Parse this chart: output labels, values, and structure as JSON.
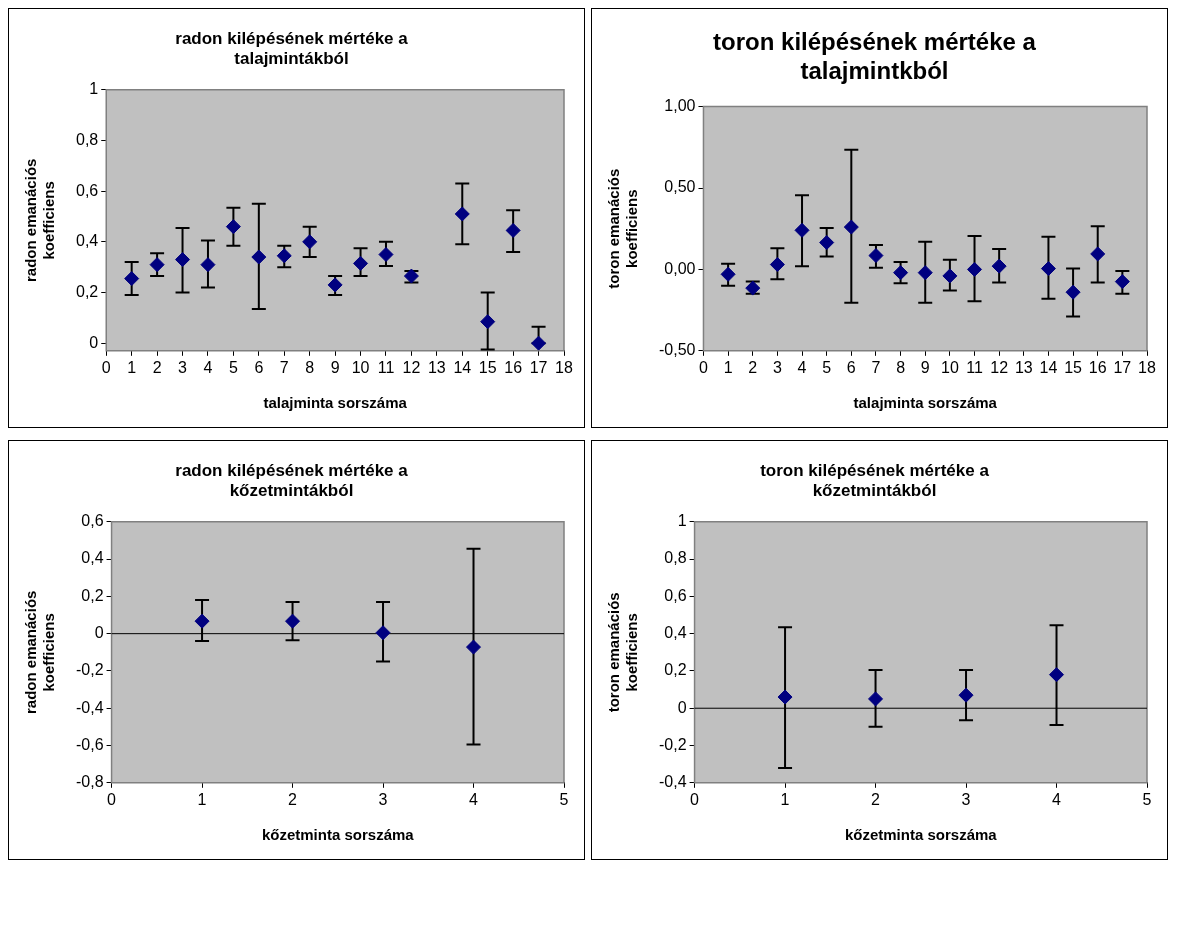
{
  "chart_data": [
    {
      "type": "scatter",
      "title": "radon kilépésének mértéke a talajmintákból",
      "xlabel": "talajminta sorszáma",
      "ylabel": "radon emanációs koefficiens",
      "color": "#000080",
      "marker": "diamond",
      "grid": false,
      "x": [
        1,
        2,
        3,
        4,
        5,
        6,
        7,
        8,
        9,
        10,
        11,
        12,
        14,
        15,
        16,
        17
      ],
      "values": [
        0.255,
        0.31,
        0.33,
        0.31,
        0.46,
        0.34,
        0.345,
        0.4,
        0.23,
        0.315,
        0.35,
        0.265,
        0.51,
        0.085,
        0.445,
        0
      ],
      "errors": [
        [
          0.19,
          0.32
        ],
        [
          0.265,
          0.355
        ],
        [
          0.2,
          0.455
        ],
        [
          0.22,
          0.405
        ],
        [
          0.385,
          0.535
        ],
        [
          0.135,
          0.55
        ],
        [
          0.3,
          0.385
        ],
        [
          0.34,
          0.46
        ],
        [
          0.19,
          0.265
        ],
        [
          0.265,
          0.375
        ],
        [
          0.305,
          0.4
        ],
        [
          0.24,
          0.285
        ],
        [
          0.39,
          0.63
        ],
        [
          -0.025,
          0.2
        ],
        [
          0.36,
          0.525
        ],
        [
          0,
          0.065
        ]
      ],
      "xlim": [
        0,
        18
      ],
      "xticks": [
        0,
        1,
        2,
        3,
        4,
        5,
        6,
        7,
        8,
        9,
        10,
        11,
        12,
        13,
        14,
        15,
        16,
        17,
        18
      ],
      "ylim": [
        -0.03,
        1
      ],
      "yticks": [
        {
          "value": 0,
          "label": "0"
        },
        {
          "value": 0.2,
          "label": "0,2"
        },
        {
          "value": 0.4,
          "label": "0,4"
        },
        {
          "value": 0.6,
          "label": "0,6"
        },
        {
          "value": 0.8,
          "label": "0,8"
        },
        {
          "value": 1,
          "label": "1"
        }
      ]
    },
    {
      "type": "scatter",
      "title": "toron kilépésének mértéke a talajmintkból",
      "xlabel": "talajminta sorszáma",
      "ylabel": "toron emanációs koefficiens",
      "color": "#000080",
      "marker": "diamond",
      "grid": false,
      "x": [
        1,
        2,
        3,
        4,
        5,
        6,
        7,
        8,
        9,
        10,
        11,
        12,
        14,
        15,
        16,
        17
      ],
      "values": [
        -0.03,
        -0.115,
        0.03,
        0.24,
        0.165,
        0.26,
        0.085,
        -0.02,
        -0.02,
        -0.04,
        0,
        0.02,
        0.005,
        -0.14,
        0.095,
        -0.075
      ],
      "errors": [
        [
          -0.1,
          0.035
        ],
        [
          -0.15,
          -0.075
        ],
        [
          -0.06,
          0.13
        ],
        [
          0.02,
          0.455
        ],
        [
          0.08,
          0.255
        ],
        [
          -0.205,
          0.735
        ],
        [
          0.01,
          0.15
        ],
        [
          -0.085,
          0.045
        ],
        [
          -0.205,
          0.17
        ],
        [
          -0.13,
          0.06
        ],
        [
          -0.195,
          0.205
        ],
        [
          -0.08,
          0.125
        ],
        [
          -0.18,
          0.2
        ],
        [
          -0.29,
          0.005
        ],
        [
          -0.08,
          0.265
        ],
        [
          -0.15,
          -0.01
        ]
      ],
      "xlim": [
        0,
        18
      ],
      "xticks": [
        0,
        1,
        2,
        3,
        4,
        5,
        6,
        7,
        8,
        9,
        10,
        11,
        12,
        13,
        14,
        15,
        16,
        17,
        18
      ],
      "ylim": [
        -0.5,
        1
      ],
      "yticks": [
        {
          "value": -0.5,
          "label": "-0,50"
        },
        {
          "value": 0,
          "label": "0,00"
        },
        {
          "value": 0.5,
          "label": "0,50"
        },
        {
          "value": 1,
          "label": "1,00"
        }
      ]
    },
    {
      "type": "scatter",
      "title": "radon kilépésének mértéke a kőzetmintákból",
      "xlabel": "kőzetminta sorszáma",
      "ylabel": "radon emanációs koefficiens",
      "color": "#000080",
      "marker": "diamond",
      "grid": false,
      "x": [
        1,
        2,
        3,
        4
      ],
      "values": [
        0.067,
        0.067,
        0.005,
        -0.072
      ],
      "errors": [
        [
          -0.04,
          0.18
        ],
        [
          -0.035,
          0.17
        ],
        [
          -0.15,
          0.17
        ],
        [
          -0.595,
          0.455
        ]
      ],
      "xlim": [
        0,
        5
      ],
      "xticks": [
        0,
        1,
        2,
        3,
        4,
        5
      ],
      "ylim": [
        -0.8,
        0.6
      ],
      "yticks": [
        {
          "value": -0.8,
          "label": "-0,8"
        },
        {
          "value": -0.6,
          "label": "-0,6"
        },
        {
          "value": -0.4,
          "label": "-0,4"
        },
        {
          "value": -0.2,
          "label": "-0,2"
        },
        {
          "value": 0,
          "label": "0"
        },
        {
          "value": 0.2,
          "label": "0,2"
        },
        {
          "value": 0.4,
          "label": "0,4"
        },
        {
          "value": 0.6,
          "label": "0,6"
        }
      ],
      "ref_lines": [
        {
          "axis": "y",
          "value": 0
        }
      ]
    },
    {
      "type": "scatter",
      "title": "toron kilépésének mértéke a kőzetmintákból",
      "xlabel": "kőzetminta sorszáma",
      "ylabel": "toron emanációs koefficiens",
      "color": "#000080",
      "marker": "diamond",
      "grid": false,
      "x": [
        1,
        2,
        3,
        4
      ],
      "values": [
        0.06,
        0.05,
        0.07,
        0.18
      ],
      "errors": [
        [
          -0.32,
          0.435
        ],
        [
          -0.1,
          0.205
        ],
        [
          -0.065,
          0.205
        ],
        [
          -0.09,
          0.445
        ]
      ],
      "xlim": [
        0,
        5
      ],
      "xticks": [
        0,
        1,
        2,
        3,
        4,
        5
      ],
      "ylim": [
        -0.4,
        1
      ],
      "yticks": [
        {
          "value": -0.4,
          "label": "-0,4"
        },
        {
          "value": -0.2,
          "label": "-0,2"
        },
        {
          "value": 0,
          "label": "0"
        },
        {
          "value": 0.2,
          "label": "0,2"
        },
        {
          "value": 0.4,
          "label": "0,4"
        },
        {
          "value": 0.6,
          "label": "0,6"
        },
        {
          "value": 0.8,
          "label": "0,8"
        },
        {
          "value": 1,
          "label": "1"
        }
      ],
      "ref_lines": [
        {
          "axis": "y",
          "value": 0
        }
      ]
    }
  ]
}
